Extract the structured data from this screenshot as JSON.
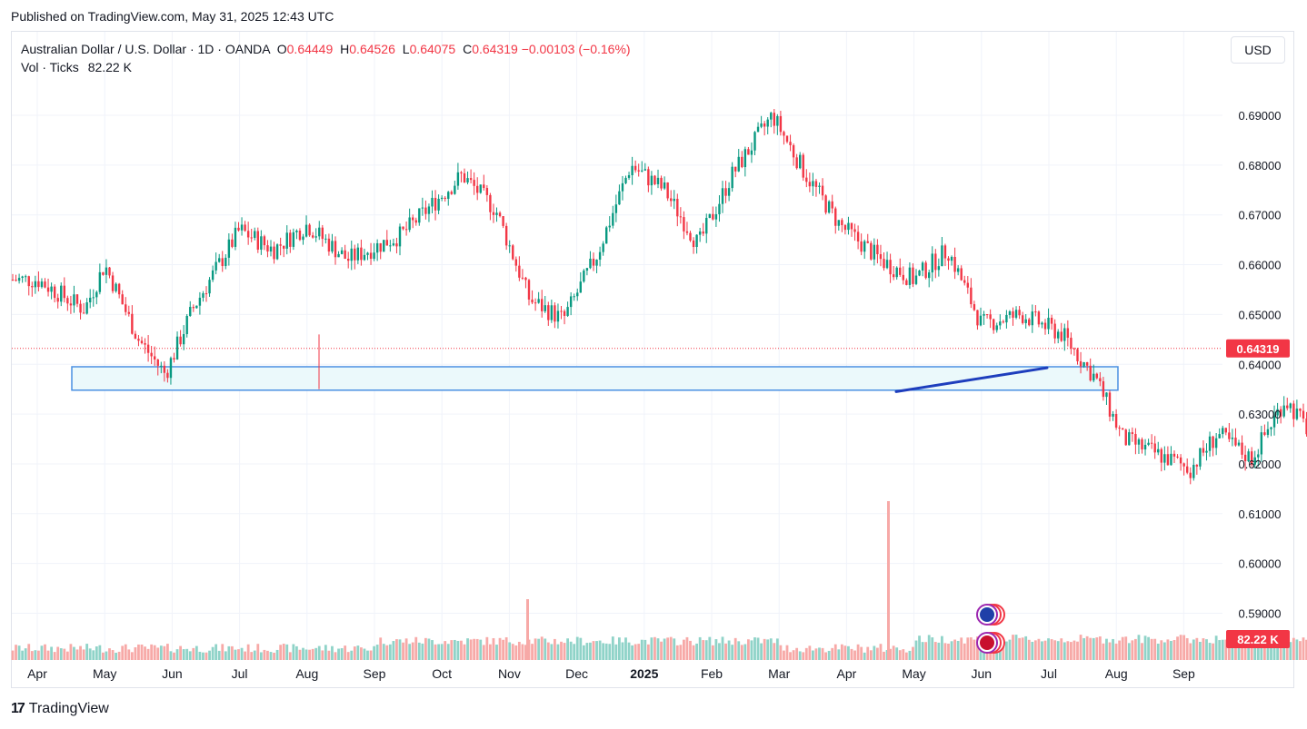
{
  "header": {
    "published": "Published on TradingView.com, May 31, 2025 12:43 UTC"
  },
  "legend": {
    "symbol": "Australian Dollar / U.S. Dollar · 1D · OANDA",
    "open_label": "O",
    "open": "0.64449",
    "high_label": "H",
    "high": "0.64526",
    "low_label": "L",
    "low": "0.64075",
    "close_label": "C",
    "close": "0.64319",
    "change": "−0.00103 (−0.16%)",
    "volume_label": "Vol · Ticks",
    "volume": "82.22 K"
  },
  "toolbar": {
    "currency": "USD"
  },
  "footer": {
    "brand": "TradingView",
    "logo": "17"
  },
  "colors": {
    "up": "#089981",
    "down": "#f23645",
    "zone_fill": "#ebf9fb",
    "zone_border": "#2962ff",
    "trendline": "#1e3ebd",
    "grid": "#f0f3fa"
  },
  "chart_data": {
    "type": "candlestick",
    "price_ticks": [
      "0.69000",
      "0.68000",
      "0.67000",
      "0.66000",
      "0.65000",
      "0.64000",
      "0.63000",
      "0.62000",
      "0.61000",
      "0.60000",
      "0.59000"
    ],
    "ylim": [
      0.58,
      0.7
    ],
    "x_ticks": [
      {
        "label": "Apr",
        "bold": false
      },
      {
        "label": "May",
        "bold": false
      },
      {
        "label": "Jun",
        "bold": false
      },
      {
        "label": "Jul",
        "bold": false
      },
      {
        "label": "Aug",
        "bold": false
      },
      {
        "label": "Sep",
        "bold": false
      },
      {
        "label": "Oct",
        "bold": false
      },
      {
        "label": "Nov",
        "bold": false
      },
      {
        "label": "Dec",
        "bold": false
      },
      {
        "label": "2025",
        "bold": true
      },
      {
        "label": "Feb",
        "bold": false
      },
      {
        "label": "Mar",
        "bold": false
      },
      {
        "label": "Apr",
        "bold": false
      },
      {
        "label": "May",
        "bold": false
      },
      {
        "label": "Jun",
        "bold": false
      },
      {
        "label": "Jul",
        "bold": false
      },
      {
        "label": "Aug",
        "bold": false
      },
      {
        "label": "Sep",
        "bold": false
      }
    ],
    "last_price_label": "0.64319",
    "last_price": 0.64319,
    "last_volume_label": "82.22 K",
    "support_zone": {
      "from_month": "Apr 2024",
      "to_month": "Jul 2025",
      "top": 0.6395,
      "bottom": 0.6348
    },
    "trendline": {
      "from": {
        "month": "Apr 2025",
        "price": 0.6345
      },
      "to": {
        "month": "Jul 2025",
        "price": 0.6393
      }
    },
    "price_path": [
      {
        "t": 0.0,
        "p": 0.657
      },
      {
        "t": 0.7,
        "p": 0.651
      },
      {
        "t": 1.0,
        "p": 0.66
      },
      {
        "t": 1.5,
        "p": 0.645
      },
      {
        "t": 1.9,
        "p": 0.638
      },
      {
        "t": 2.3,
        "p": 0.651
      },
      {
        "t": 3.0,
        "p": 0.667
      },
      {
        "t": 3.5,
        "p": 0.663
      },
      {
        "t": 4.0,
        "p": 0.668
      },
      {
        "t": 4.6,
        "p": 0.661
      },
      {
        "t": 5.4,
        "p": 0.666
      },
      {
        "t": 6.3,
        "p": 0.678
      },
      {
        "t": 6.8,
        "p": 0.671
      },
      {
        "t": 7.3,
        "p": 0.653
      },
      {
        "t": 7.8,
        "p": 0.649
      },
      {
        "t": 8.3,
        "p": 0.662
      },
      {
        "t": 8.8,
        "p": 0.68
      },
      {
        "t": 9.3,
        "p": 0.675
      },
      {
        "t": 9.8,
        "p": 0.664
      },
      {
        "t": 10.3,
        "p": 0.678
      },
      {
        "t": 10.9,
        "p": 0.69
      },
      {
        "t": 11.4,
        "p": 0.678
      },
      {
        "t": 11.9,
        "p": 0.668
      },
      {
        "t": 12.5,
        "p": 0.661
      },
      {
        "t": 13.0,
        "p": 0.657
      },
      {
        "t": 13.5,
        "p": 0.663
      },
      {
        "t": 14.0,
        "p": 0.648
      },
      {
        "t": 14.6,
        "p": 0.65
      },
      {
        "t": 15.2,
        "p": 0.646
      },
      {
        "t": 15.7,
        "p": 0.637
      },
      {
        "t": 16.1,
        "p": 0.625
      },
      {
        "t": 16.6,
        "p": 0.622
      },
      {
        "t": 17.1,
        "p": 0.619
      },
      {
        "t": 17.5,
        "p": 0.626
      },
      {
        "t": 18.0,
        "p": 0.621
      },
      {
        "t": 18.5,
        "p": 0.633
      },
      {
        "t": 19.0,
        "p": 0.624
      },
      {
        "t": 19.5,
        "p": 0.629
      },
      {
        "t": 20.0,
        "p": 0.634
      },
      {
        "t": 20.5,
        "p": 0.636
      },
      {
        "t": 20.9,
        "p": 0.626
      },
      {
        "t": 21.3,
        "p": 0.632
      },
      {
        "t": 21.8,
        "p": 0.63
      },
      {
        "t": 22.2,
        "p": 0.638
      },
      {
        "t": 22.6,
        "p": 0.63
      },
      {
        "t": 23.0,
        "p": 0.63
      },
      {
        "t": 23.4,
        "p": 0.625
      },
      {
        "t": 23.6,
        "p": 0.6
      },
      {
        "t": 23.8,
        "p": 0.594
      },
      {
        "t": 24.1,
        "p": 0.618
      },
      {
        "t": 24.5,
        "p": 0.636
      },
      {
        "t": 25.0,
        "p": 0.638
      },
      {
        "t": 25.5,
        "p": 0.645
      },
      {
        "t": 26.0,
        "p": 0.641
      },
      {
        "t": 26.5,
        "p": 0.643
      },
      {
        "t": 27.0,
        "p": 0.648
      },
      {
        "t": 27.4,
        "p": 0.643
      }
    ]
  }
}
